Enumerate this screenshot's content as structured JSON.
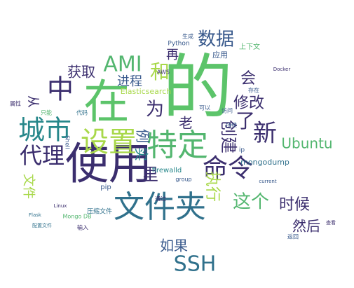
{
  "words": [
    {
      "text": "的",
      "color": "#5cc46a"
    },
    {
      "text": "在",
      "color": "#5cc46a"
    },
    {
      "text": "使用",
      "color": "#3b2e6e"
    },
    {
      "text": "文件夹",
      "color": "#30718c"
    },
    {
      "text": "特定",
      "color": "#53b66f"
    },
    {
      "text": "设置",
      "color": "#a8d84a"
    },
    {
      "text": "城市",
      "color": "#26878a"
    },
    {
      "text": "中",
      "color": "#3b2e6e"
    },
    {
      "text": "代理",
      "color": "#3b2e6e"
    },
    {
      "text": "命令",
      "color": "#3b2e6e"
    },
    {
      "text": "新",
      "color": "#3b2e6e"
    },
    {
      "text": "AMI",
      "color": "#53b66f"
    },
    {
      "text": "数据",
      "color": "#38598c"
    },
    {
      "text": "SSH",
      "color": "#30718c"
    },
    {
      "text": "Ubuntu",
      "color": "#53b66f"
    },
    {
      "text": "创建",
      "color": "#3b2e6e"
    },
    {
      "text": "了",
      "color": "#3b2e6e"
    },
    {
      "text": "为",
      "color": "#3b2e6e"
    },
    {
      "text": "这个",
      "color": "#53b66f"
    },
    {
      "text": "执行",
      "color": "#a8d84a"
    },
    {
      "text": "修改",
      "color": "#3b2e6e"
    },
    {
      "text": "获取",
      "color": "#3b2e6e"
    },
    {
      "text": "会",
      "color": "#3b2e6e"
    },
    {
      "text": "进程",
      "color": "#38598c"
    },
    {
      "text": "和",
      "color": "#a8d84a"
    },
    {
      "text": "时候",
      "color": "#3b2e6e"
    },
    {
      "text": "然后",
      "color": "#3b2e6e"
    },
    {
      "text": "如果",
      "color": "#38598c"
    },
    {
      "text": "里",
      "color": "#3b2e6e"
    },
    {
      "text": "老",
      "color": "#3b2e6e"
    },
    {
      "text": "例",
      "color": "#38598c"
    },
    {
      "text": "实",
      "color": "#26878a"
    },
    {
      "text": "文件",
      "color": "#a8d84a"
    },
    {
      "text": "再",
      "color": "#3b2e6e"
    },
    {
      "text": "从",
      "color": "#3b2e6e"
    },
    {
      "text": "Elasticsearch",
      "color": "#a8d84a"
    },
    {
      "text": "mongodump",
      "color": "#30718c"
    },
    {
      "text": "firewalld",
      "color": "#26878a"
    },
    {
      "text": "Python",
      "color": "#38598c"
    },
    {
      "text": "应用",
      "color": "#38598c"
    },
    {
      "text": "上下文",
      "color": "#53b66f"
    },
    {
      "text": "Docker",
      "color": "#3b2e6e"
    },
    {
      "text": "Mongo DB",
      "color": "#53b66f"
    },
    {
      "text": "压缩文件",
      "color": "#30718c"
    },
    {
      "text": "Shell",
      "color": "#38598c"
    },
    {
      "text": "pip",
      "color": "#38598c"
    },
    {
      "text": "Flask",
      "color": "#30718c"
    },
    {
      "text": "Linux",
      "color": "#3b2e6e"
    },
    {
      "text": "AWS",
      "color": "#3b2e6e"
    },
    {
      "text": "生成",
      "color": "#38598c"
    },
    {
      "text": "持续",
      "color": "#38598c"
    },
    {
      "text": "属性",
      "color": "#3b2e6e"
    },
    {
      "text": "代码",
      "color": "#30718c"
    },
    {
      "text": "只能",
      "color": "#53b66f"
    },
    {
      "text": "访问",
      "color": "#38598c"
    },
    {
      "text": "返回",
      "color": "#38598c"
    },
    {
      "text": "查看",
      "color": "#3b2e6e"
    },
    {
      "text": "存在",
      "color": "#38598c"
    },
    {
      "text": "可以",
      "color": "#38598c"
    },
    {
      "text": "group",
      "color": "#38598c"
    },
    {
      "text": "current",
      "color": "#38598c"
    },
    {
      "text": "通过",
      "color": "#3b2e6e"
    },
    {
      "text": "配置文件",
      "color": "#30718c"
    },
    {
      "text": "ip",
      "color": "#38598c"
    },
    {
      "text": "输入",
      "color": "#3b2e6e"
    }
  ]
}
